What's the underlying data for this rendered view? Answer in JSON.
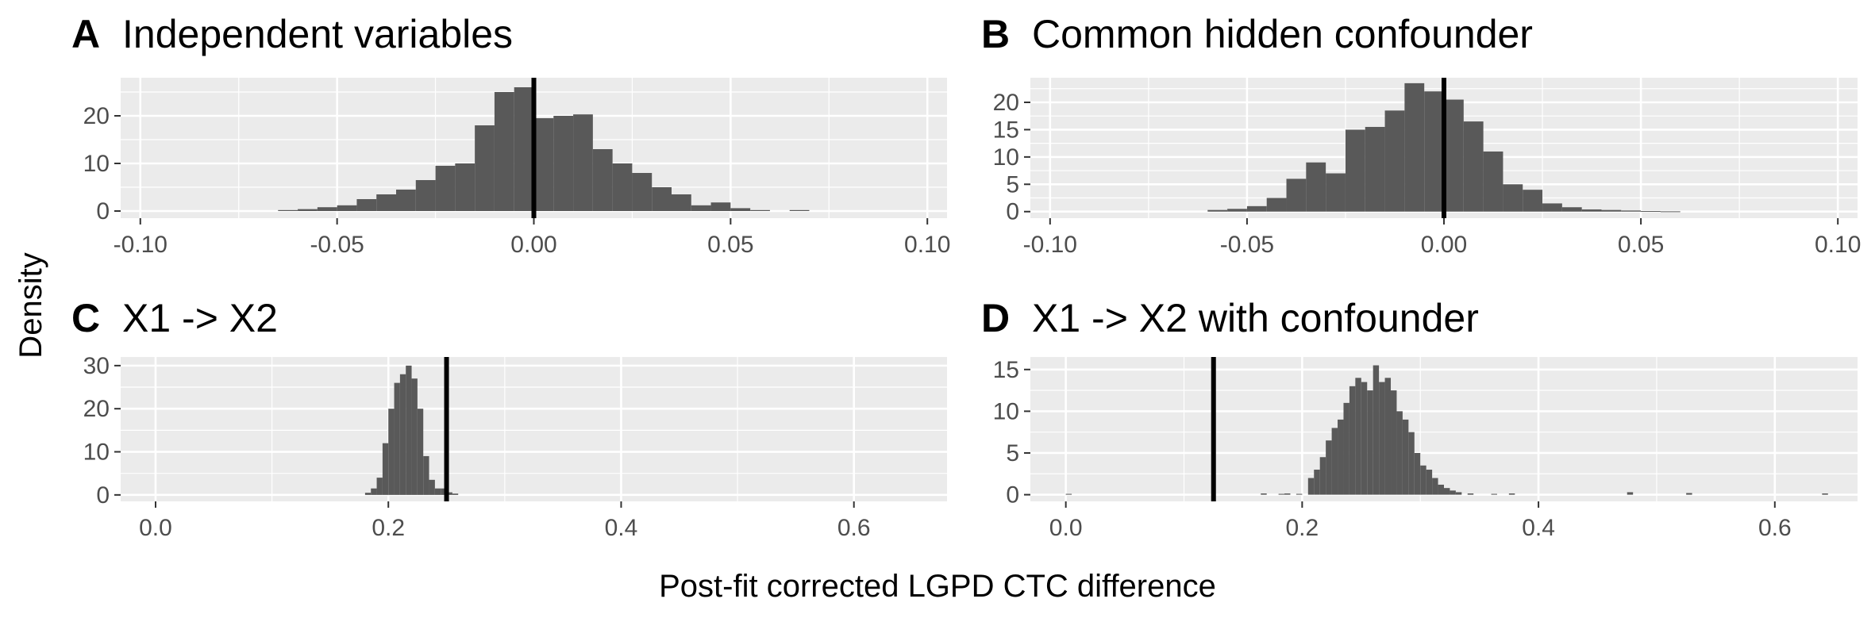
{
  "figure": {
    "ylabel": "Density",
    "xlabel": "Post-fit corrected LGPD CTC difference"
  },
  "chart_data": [
    {
      "letter": "A",
      "title": "Independent variables",
      "type": "bar",
      "xlim": [
        -0.105,
        0.105
      ],
      "ylim": [
        -1.5,
        28
      ],
      "x_ticks": [
        -0.1,
        -0.05,
        0.0,
        0.05,
        0.1
      ],
      "x_tick_labels": [
        "-0.10",
        "-0.05",
        "0.00",
        "0.05",
        "0.10"
      ],
      "y_ticks": [
        0,
        10,
        20
      ],
      "y_tick_labels": [
        "0",
        "10",
        "20"
      ],
      "vline": 0.0,
      "bin_width": 0.005,
      "bins_start": -0.065,
      "densities": [
        0.2,
        0.4,
        0.8,
        1.2,
        2.5,
        3.5,
        4.5,
        6.5,
        9.5,
        10,
        18,
        25,
        26,
        19.5,
        20,
        20.3,
        13,
        10,
        8,
        5,
        3.5,
        1.2,
        1.8,
        0.6,
        0.2,
        0,
        0.2
      ]
    },
    {
      "letter": "B",
      "title": "Common hidden confounder",
      "type": "bar",
      "xlim": [
        -0.105,
        0.105
      ],
      "ylim": [
        -1.2,
        24.5
      ],
      "x_ticks": [
        -0.1,
        -0.05,
        0.0,
        0.05,
        0.1
      ],
      "x_tick_labels": [
        "-0.10",
        "-0.05",
        "0.00",
        "0.05",
        "0.10"
      ],
      "y_ticks": [
        0,
        5,
        10,
        15,
        20
      ],
      "y_tick_labels": [
        "0",
        "5",
        "10",
        "15",
        "20"
      ],
      "vline": 0.0,
      "bin_width": 0.005,
      "bins_start": -0.06,
      "densities": [
        0.3,
        0.5,
        1,
        2.5,
        6,
        9,
        7,
        15,
        15.5,
        18.5,
        23.5,
        22,
        20.5,
        16.5,
        11,
        5,
        4,
        1.5,
        0.8,
        0.4,
        0.3,
        0.2,
        0.1,
        0.05
      ]
    },
    {
      "letter": "C",
      "title": "X1 -> X2",
      "type": "bar",
      "xlim": [
        -0.03,
        0.68
      ],
      "ylim": [
        -1.5,
        32
      ],
      "x_ticks": [
        0.0,
        0.2,
        0.4,
        0.6
      ],
      "x_tick_labels": [
        "0.0",
        "0.2",
        "0.4",
        "0.6"
      ],
      "y_ticks": [
        0,
        10,
        20,
        30
      ],
      "y_tick_labels": [
        "0",
        "10",
        "20",
        "30"
      ],
      "vline": 0.25,
      "bin_width": 0.005,
      "bins_start": 0.18,
      "densities": [
        0.5,
        1.5,
        4,
        12,
        20,
        26,
        28,
        30,
        27,
        20,
        9,
        3.5,
        1.5,
        1.5,
        0.6,
        0.3
      ]
    },
    {
      "letter": "D",
      "title": "X1 -> X2 with confounder",
      "type": "bar",
      "xlim": [
        -0.03,
        0.67
      ],
      "ylim": [
        -0.8,
        16.5
      ],
      "x_ticks": [
        0.0,
        0.2,
        0.4,
        0.6
      ],
      "x_tick_labels": [
        "0.0",
        "0.2",
        "0.4",
        "0.6"
      ],
      "y_ticks": [
        0,
        5,
        10,
        15
      ],
      "y_tick_labels": [
        "0",
        "5",
        "10",
        "15"
      ],
      "vline": 0.125,
      "bin_width": 0.005,
      "bins_start": 0.205,
      "densities": [
        2,
        3,
        4.5,
        6.5,
        8,
        9,
        11,
        13,
        14,
        13.5,
        12.5,
        15.5,
        13.5,
        14,
        12.5,
        10,
        9,
        7.5,
        5,
        3.5,
        3,
        2,
        1.2,
        0.8,
        0.5,
        0.3
      ],
      "outliers": [
        [
          0.0,
          0.1
        ],
        [
          0.165,
          0.15
        ],
        [
          0.18,
          0.1
        ],
        [
          0.185,
          0.15
        ],
        [
          0.195,
          0.1
        ],
        [
          0.34,
          0.15
        ],
        [
          0.36,
          0.1
        ],
        [
          0.375,
          0.15
        ],
        [
          0.475,
          0.3
        ],
        [
          0.525,
          0.2
        ],
        [
          0.64,
          0.15
        ]
      ]
    }
  ]
}
